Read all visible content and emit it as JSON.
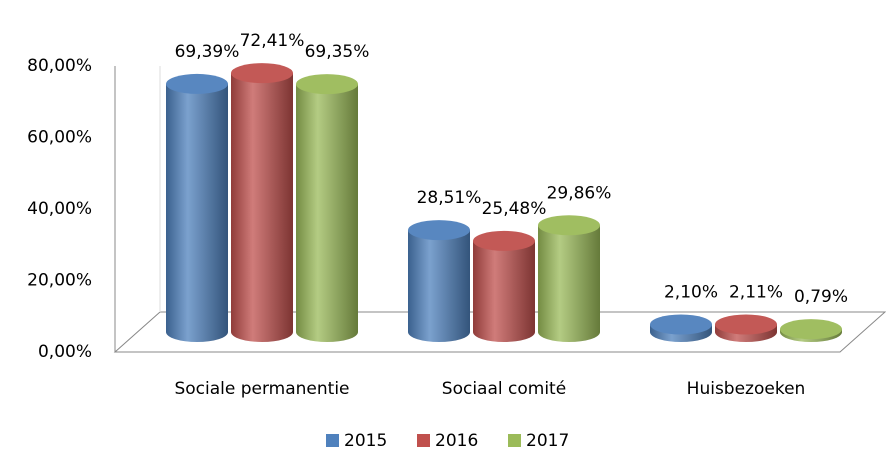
{
  "chart_data": {
    "type": "bar",
    "categories": [
      "Sociale permanentie",
      "Sociaal comité",
      "Huisbezoeken"
    ],
    "series": [
      {
        "name": "2015",
        "color": "#4f81bd",
        "values": [
          69.39,
          28.51,
          2.1
        ],
        "value_labels": [
          "69,39%",
          "28,51%",
          "2,10%"
        ]
      },
      {
        "name": "2016",
        "color": "#c0504d",
        "values": [
          72.41,
          25.48,
          2.11
        ],
        "value_labels": [
          "72,41%",
          "25,48%",
          "2,11%"
        ]
      },
      {
        "name": "2017",
        "color": "#9bbb59",
        "values": [
          69.35,
          29.86,
          0.79
        ],
        "value_labels": [
          "69,35%",
          "29,86%",
          "0,79%"
        ]
      }
    ],
    "ylim": [
      0,
      80
    ],
    "yticks": [
      {
        "value": 0,
        "label": "0,00%"
      },
      {
        "value": 20,
        "label": "20,00%"
      },
      {
        "value": 40,
        "label": "40,00%"
      },
      {
        "value": 60,
        "label": "60,00%"
      },
      {
        "value": 80,
        "label": "80,00%"
      }
    ],
    "legend": "bottom"
  }
}
